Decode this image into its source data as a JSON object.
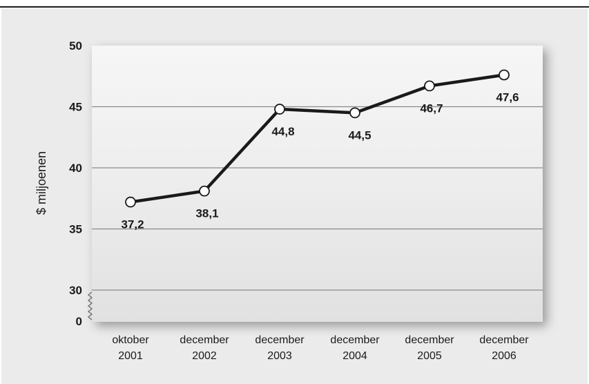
{
  "chart_data": {
    "type": "line",
    "ylabel": "$ miljoenen",
    "xlabel": "",
    "categories": [
      [
        "oktober",
        "2001"
      ],
      [
        "december",
        "2002"
      ],
      [
        "december",
        "2003"
      ],
      [
        "december",
        "2004"
      ],
      [
        "december",
        "2005"
      ],
      [
        "december",
        "2006"
      ]
    ],
    "values": [
      37.2,
      38.1,
      44.8,
      44.5,
      46.7,
      47.6
    ],
    "data_labels": [
      "37,2",
      "38,1",
      "44,8",
      "44,5",
      "46,7",
      "47,6"
    ],
    "y_ticks": [
      "0",
      "30",
      "35",
      "40",
      "45",
      "50"
    ],
    "ylim": [
      30,
      50
    ],
    "y_axis_break": "between 0 and 30",
    "grid": true,
    "legend": "none",
    "colors": {
      "line": "#1a1a1a",
      "marker_fill": "#ffffff",
      "grid": "#8a8a8a",
      "panel": "#ebebeb"
    }
  }
}
